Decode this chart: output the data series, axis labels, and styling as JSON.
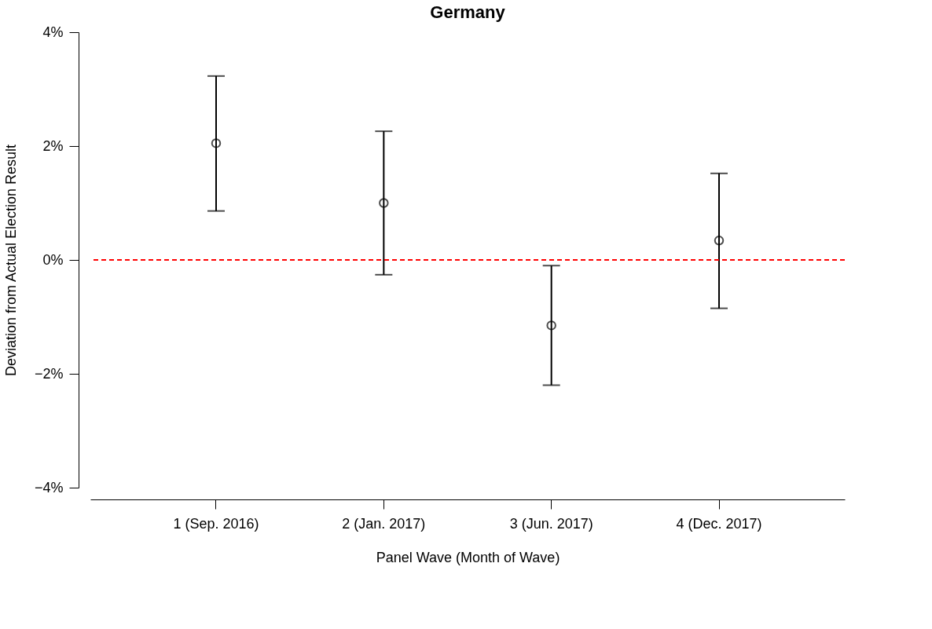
{
  "chart_data": {
    "type": "scatter",
    "title": "Germany",
    "xlabel": "Panel Wave (Month of Wave)",
    "ylabel": "Deviation from Actual Election Result",
    "categories": [
      "1 (Sep. 2016)",
      "2 (Jan. 2017)",
      "3 (Jun. 2017)",
      "4 (Dec. 2017)"
    ],
    "series": [
      {
        "color": "#000000",
        "values": [
          2.05,
          1.0,
          -1.15,
          0.34
        ],
        "errors": [
          [
            0.86,
            3.23
          ],
          [
            -0.26,
            2.26
          ],
          [
            -2.2,
            -0.1
          ],
          [
            -0.85,
            1.52
          ]
        ]
      }
    ],
    "ylim": [
      -4,
      4
    ],
    "yticks": [
      {
        "value": -4,
        "label": "−4%"
      },
      {
        "value": -2,
        "label": "−2%"
      },
      {
        "value": 0,
        "label": "0%"
      },
      {
        "value": 2,
        "label": "2%"
      },
      {
        "value": 4,
        "label": "4%"
      }
    ],
    "ref_lines": [
      {
        "axis": "y",
        "value": 0,
        "color": "#ff0000",
        "line_style": "dashed"
      }
    ],
    "marker": "circle",
    "grid": false
  }
}
